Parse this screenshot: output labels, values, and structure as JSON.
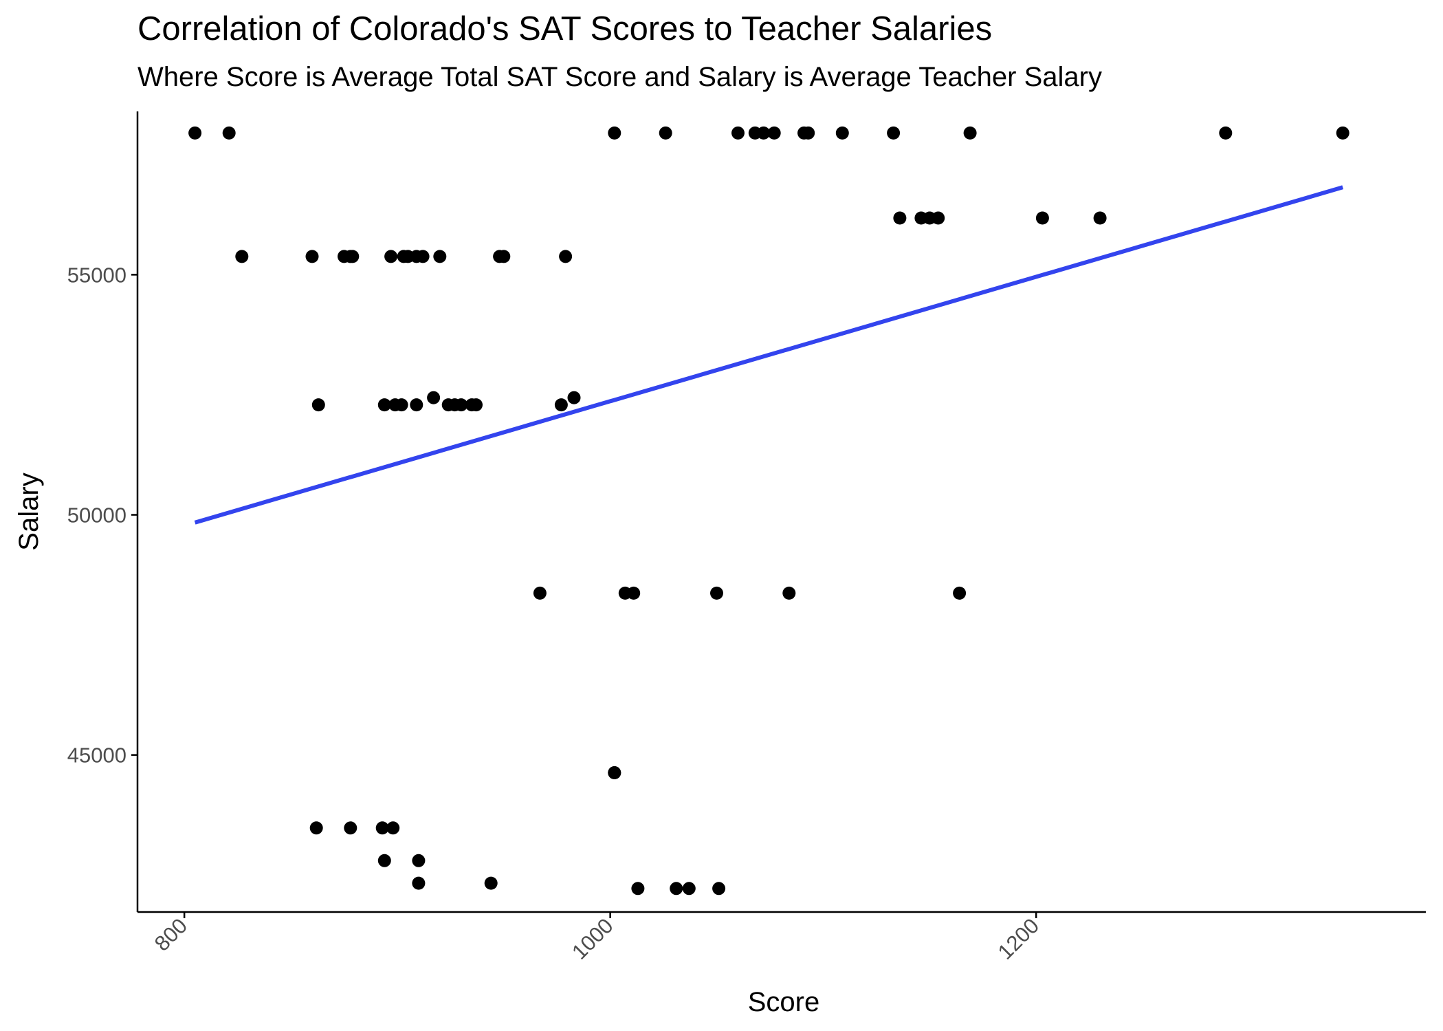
{
  "chart_data": {
    "type": "scatter",
    "title": "Correlation of Colorado's SAT Scores to Teacher Salaries",
    "subtitle": "Where Score is Average Total SAT Score and Salary is Average Teacher Salary",
    "xlabel": "Score",
    "ylabel": "Salary",
    "xlim": [
      778,
      1383
    ],
    "ylim": [
      41730,
      58400
    ],
    "x_ticks": [
      800,
      1000,
      1200
    ],
    "y_ticks": [
      45000,
      50000,
      55000
    ],
    "grid": false,
    "point_color": "#000000",
    "trend_color": "#3344ee",
    "points": [
      {
        "x": 805,
        "y": 57950
      },
      {
        "x": 821,
        "y": 57950
      },
      {
        "x": 1002,
        "y": 57950
      },
      {
        "x": 1026,
        "y": 57950
      },
      {
        "x": 1060,
        "y": 57950
      },
      {
        "x": 1068,
        "y": 57950
      },
      {
        "x": 1072,
        "y": 57950
      },
      {
        "x": 1077,
        "y": 57950
      },
      {
        "x": 1091,
        "y": 57950
      },
      {
        "x": 1093,
        "y": 57950
      },
      {
        "x": 1109,
        "y": 57950
      },
      {
        "x": 1133,
        "y": 57950
      },
      {
        "x": 1169,
        "y": 57950
      },
      {
        "x": 1289,
        "y": 57950
      },
      {
        "x": 1344,
        "y": 57950
      },
      {
        "x": 1136,
        "y": 56180
      },
      {
        "x": 1146,
        "y": 56180
      },
      {
        "x": 1150,
        "y": 56180
      },
      {
        "x": 1154,
        "y": 56180
      },
      {
        "x": 1203,
        "y": 56180
      },
      {
        "x": 1230,
        "y": 56180
      },
      {
        "x": 827,
        "y": 55380
      },
      {
        "x": 860,
        "y": 55380
      },
      {
        "x": 875,
        "y": 55380
      },
      {
        "x": 878,
        "y": 55380
      },
      {
        "x": 879,
        "y": 55380
      },
      {
        "x": 897,
        "y": 55380
      },
      {
        "x": 903,
        "y": 55380
      },
      {
        "x": 905,
        "y": 55380
      },
      {
        "x": 909,
        "y": 55380
      },
      {
        "x": 912,
        "y": 55380
      },
      {
        "x": 920,
        "y": 55380
      },
      {
        "x": 948,
        "y": 55380
      },
      {
        "x": 950,
        "y": 55380
      },
      {
        "x": 979,
        "y": 55380
      },
      {
        "x": 863,
        "y": 52290
      },
      {
        "x": 894,
        "y": 52290
      },
      {
        "x": 899,
        "y": 52290
      },
      {
        "x": 902,
        "y": 52290
      },
      {
        "x": 909,
        "y": 52290
      },
      {
        "x": 917,
        "y": 52440
      },
      {
        "x": 924,
        "y": 52290
      },
      {
        "x": 927,
        "y": 52290
      },
      {
        "x": 930,
        "y": 52290
      },
      {
        "x": 935,
        "y": 52290
      },
      {
        "x": 937,
        "y": 52290
      },
      {
        "x": 977,
        "y": 52290
      },
      {
        "x": 983,
        "y": 52440
      },
      {
        "x": 967,
        "y": 48370
      },
      {
        "x": 1007,
        "y": 48370
      },
      {
        "x": 1011,
        "y": 48370
      },
      {
        "x": 1050,
        "y": 48370
      },
      {
        "x": 1084,
        "y": 48370
      },
      {
        "x": 1164,
        "y": 48370
      },
      {
        "x": 1002,
        "y": 44630
      },
      {
        "x": 1002,
        "y": 44630
      },
      {
        "x": 862,
        "y": 43480
      },
      {
        "x": 878,
        "y": 43480
      },
      {
        "x": 893,
        "y": 43480
      },
      {
        "x": 898,
        "y": 43480
      },
      {
        "x": 894,
        "y": 42800
      },
      {
        "x": 910,
        "y": 42800
      },
      {
        "x": 910,
        "y": 42330
      },
      {
        "x": 944,
        "y": 42330
      },
      {
        "x": 1013,
        "y": 42220
      },
      {
        "x": 1031,
        "y": 42220
      },
      {
        "x": 1037,
        "y": 42220
      },
      {
        "x": 1051,
        "y": 42220
      }
    ],
    "trend_line": {
      "x": [
        805,
        1344
      ],
      "y": [
        49840,
        56820
      ]
    }
  }
}
